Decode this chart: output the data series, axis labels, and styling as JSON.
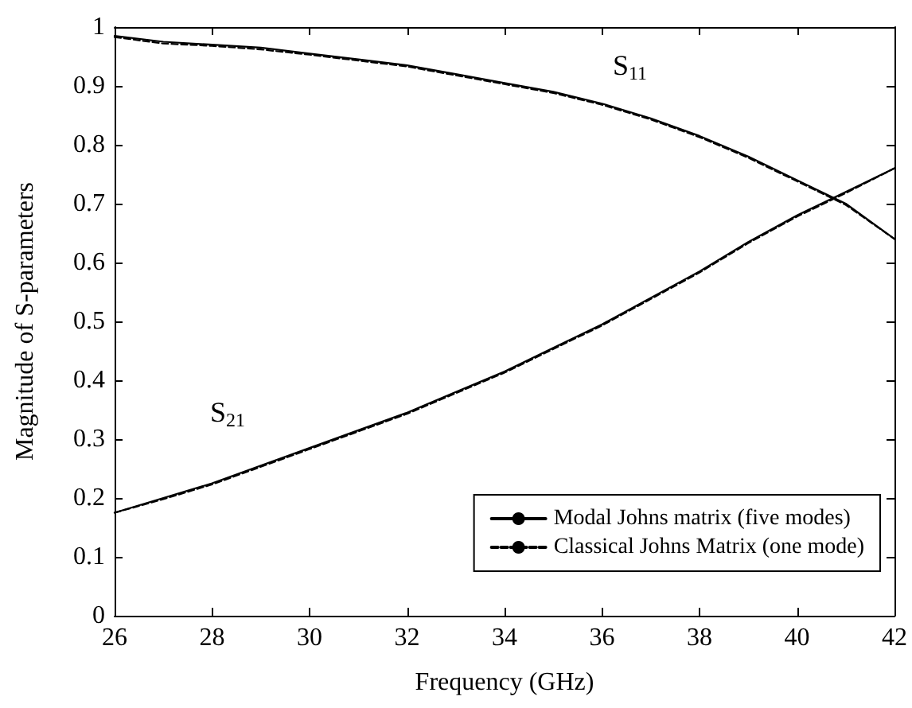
{
  "chart_data": {
    "type": "line",
    "xlabel": "Frequency (GHz)",
    "ylabel": "Magnitude of S-parameters",
    "x": [
      26,
      27,
      28,
      29,
      30,
      31,
      32,
      33,
      34,
      35,
      36,
      37,
      38,
      39,
      40,
      41,
      42
    ],
    "series": [
      {
        "name": "Modal Johns matrix (five modes)",
        "color": "#000000",
        "line_style": "solid",
        "values": [
          0.985,
          0.975,
          0.97,
          0.965,
          0.955,
          0.945,
          0.935,
          0.92,
          0.905,
          0.89,
          0.87,
          0.845,
          0.815,
          0.78,
          0.74,
          0.7,
          0.64
        ]
      },
      {
        "color": "#000000",
        "line_style": "solid",
        "values": [
          0.175,
          0.2,
          0.225,
          0.255,
          0.285,
          0.315,
          0.345,
          0.38,
          0.415,
          0.455,
          0.495,
          0.54,
          0.585,
          0.635,
          0.68,
          0.72,
          0.76
        ]
      },
      {
        "name": "Classical Johns Matrix (one mode)",
        "color": "#000000",
        "line_style": "dashed",
        "values": [
          0.983,
          0.972,
          0.968,
          0.962,
          0.953,
          0.943,
          0.933,
          0.918,
          0.903,
          0.888,
          0.868,
          0.843,
          0.813,
          0.778,
          0.738,
          0.698,
          0.64
        ]
      },
      {
        "color": "#000000",
        "line_style": "dashed",
        "values": [
          0.175,
          0.198,
          0.223,
          0.253,
          0.283,
          0.313,
          0.343,
          0.378,
          0.413,
          0.453,
          0.493,
          0.538,
          0.583,
          0.633,
          0.678,
          0.718,
          0.76
        ]
      }
    ],
    "annotations": [
      "S$_{11}$",
      "S$_{21}$"
    ],
    "xlim": [
      26,
      42
    ],
    "xticks": [
      26,
      28,
      30,
      32,
      34,
      36,
      38,
      40,
      42
    ],
    "ylim": [
      0,
      1
    ],
    "yticks": [
      0,
      0.1,
      0.2,
      0.3,
      0.4,
      0.5,
      0.6,
      0.7,
      0.8,
      0.9,
      1
    ],
    "grid": false,
    "legend": "bottom right",
    "marker": "none"
  }
}
